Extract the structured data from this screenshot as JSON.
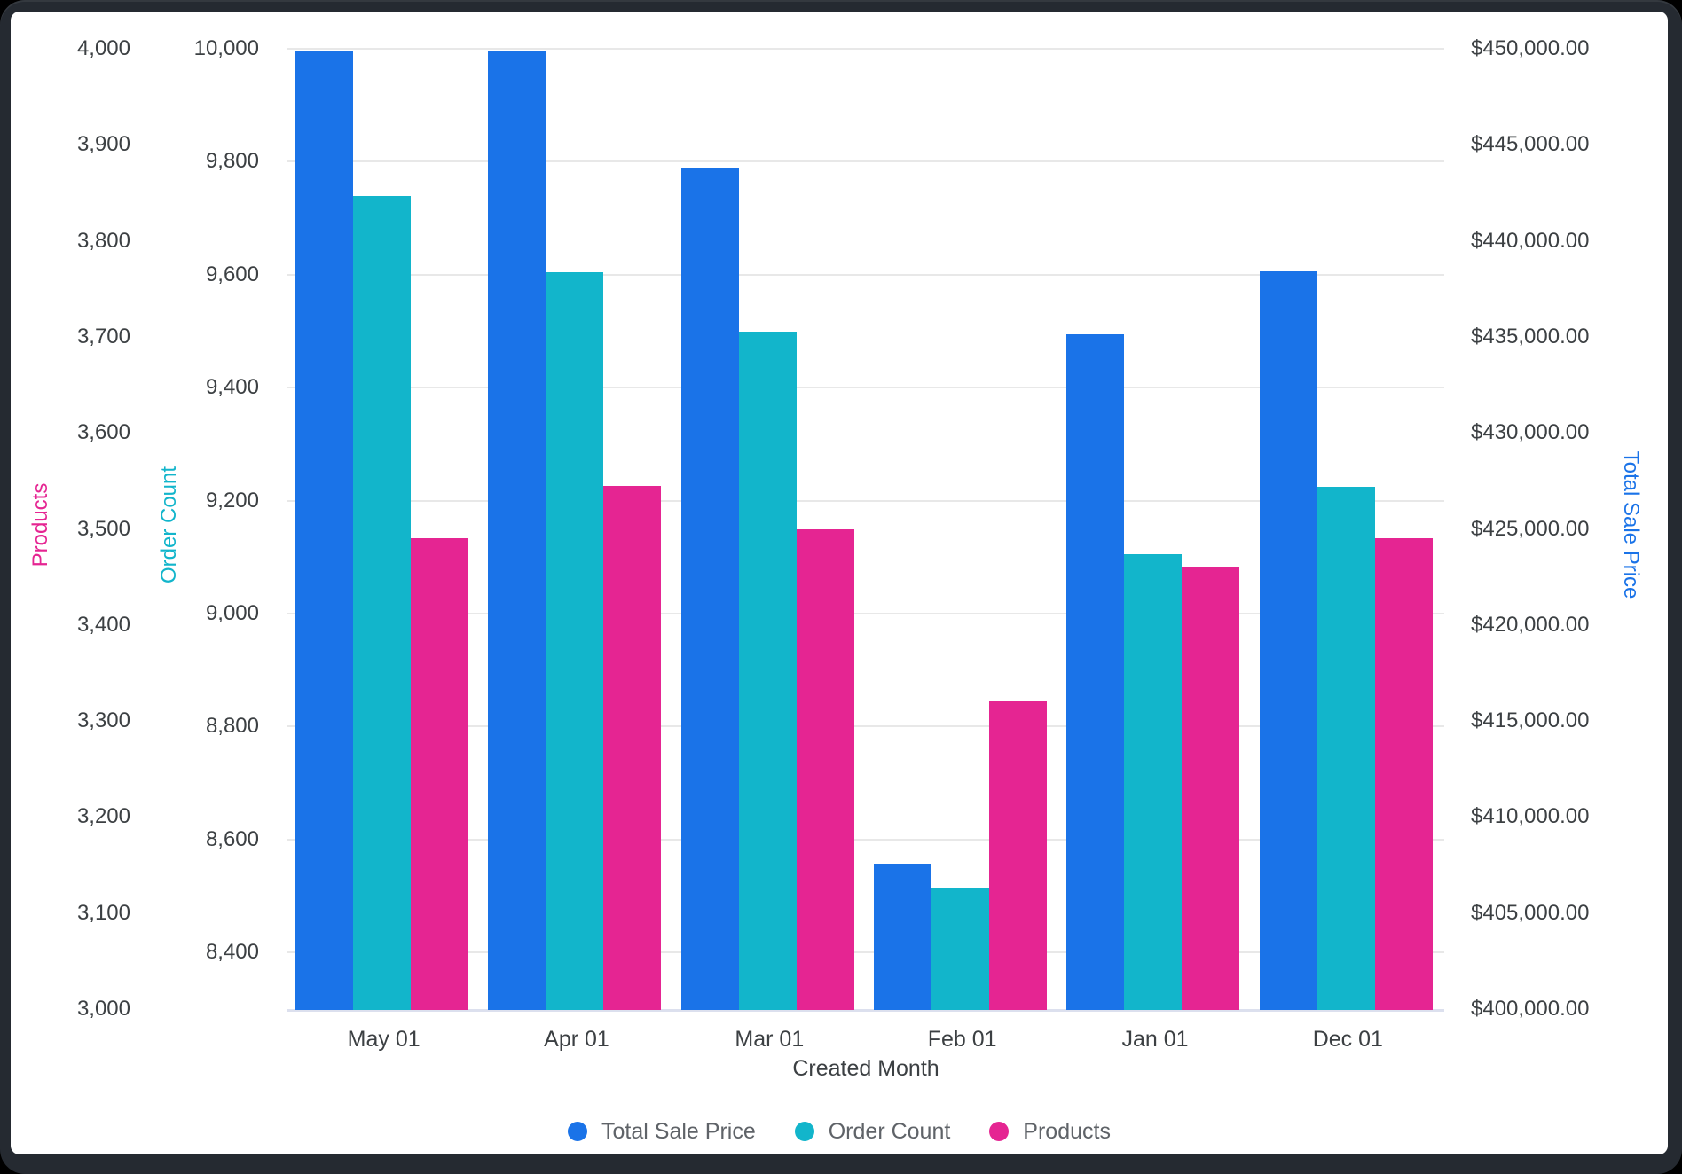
{
  "window": {
    "background_color": "#000000",
    "frame_color": "#252A31",
    "card_color": "#FFFFFF"
  },
  "chart_data": {
    "type": "bar",
    "title": "",
    "xlabel": "Created Month",
    "categories": [
      "May 01",
      "Apr 01",
      "Mar 01",
      "Feb 01",
      "Jan 01",
      "Dec 01"
    ],
    "series": [
      {
        "name": "Total Sale Price",
        "color": "#1A73E8",
        "axis": "price",
        "values": [
          449900,
          449900,
          443750,
          407550,
          435150,
          438400
        ]
      },
      {
        "name": "Order Count",
        "color": "#12B5CB",
        "axis": "order",
        "values": [
          9740,
          9605,
          9500,
          8515,
          9105,
          9225
        ]
      },
      {
        "name": "Products",
        "color": "#E52592",
        "axis": "products",
        "values": [
          3490,
          3545,
          3500,
          3320,
          3460,
          3490
        ]
      }
    ],
    "axes": {
      "products": {
        "title": "Products",
        "color": "#E52592",
        "min": 3000,
        "max": 4000,
        "position": "outer-left",
        "ticks": [
          {
            "v": 3000,
            "label": "3,000"
          },
          {
            "v": 3100,
            "label": "3,100"
          },
          {
            "v": 3200,
            "label": "3,200"
          },
          {
            "v": 3300,
            "label": "3,300"
          },
          {
            "v": 3400,
            "label": "3,400"
          },
          {
            "v": 3500,
            "label": "3,500"
          },
          {
            "v": 3600,
            "label": "3,600"
          },
          {
            "v": 3700,
            "label": "3,700"
          },
          {
            "v": 3800,
            "label": "3,800"
          },
          {
            "v": 3900,
            "label": "3,900"
          },
          {
            "v": 4000,
            "label": "4,000"
          }
        ]
      },
      "order": {
        "title": "Order Count",
        "color": "#12B5CB",
        "min": 8300,
        "max": 10000,
        "position": "inner-left",
        "gridlines": true,
        "ticks": [
          {
            "v": 8400,
            "label": "8,400"
          },
          {
            "v": 8600,
            "label": "8,600"
          },
          {
            "v": 8800,
            "label": "8,800"
          },
          {
            "v": 9000,
            "label": "9,000"
          },
          {
            "v": 9200,
            "label": "9,200"
          },
          {
            "v": 9400,
            "label": "9,400"
          },
          {
            "v": 9600,
            "label": "9,600"
          },
          {
            "v": 9800,
            "label": "9,800"
          },
          {
            "v": 10000,
            "label": "10,000"
          }
        ]
      },
      "price": {
        "title": "Total Sale Price",
        "color": "#1A73E8",
        "min": 400000,
        "max": 450000,
        "position": "right",
        "ticks": [
          {
            "v": 400000,
            "label": "$400,000.00"
          },
          {
            "v": 405000,
            "label": "$405,000.00"
          },
          {
            "v": 410000,
            "label": "$410,000.00"
          },
          {
            "v": 415000,
            "label": "$415,000.00"
          },
          {
            "v": 420000,
            "label": "$420,000.00"
          },
          {
            "v": 425000,
            "label": "$425,000.00"
          },
          {
            "v": 430000,
            "label": "$430,000.00"
          },
          {
            "v": 435000,
            "label": "$435,000.00"
          },
          {
            "v": 440000,
            "label": "$440,000.00"
          },
          {
            "v": 445000,
            "label": "$445,000.00"
          },
          {
            "v": 450000,
            "label": "$450,000.00"
          }
        ]
      }
    },
    "legend": {
      "position": "bottom-center",
      "items": [
        "Total Sale Price",
        "Order Count",
        "Products"
      ]
    },
    "grid": {
      "color": "#E8E8E8",
      "baseline_color": "#DCE0EE"
    },
    "text": {
      "tick_color": "#3C4043",
      "legend_color": "#5F6368"
    }
  }
}
